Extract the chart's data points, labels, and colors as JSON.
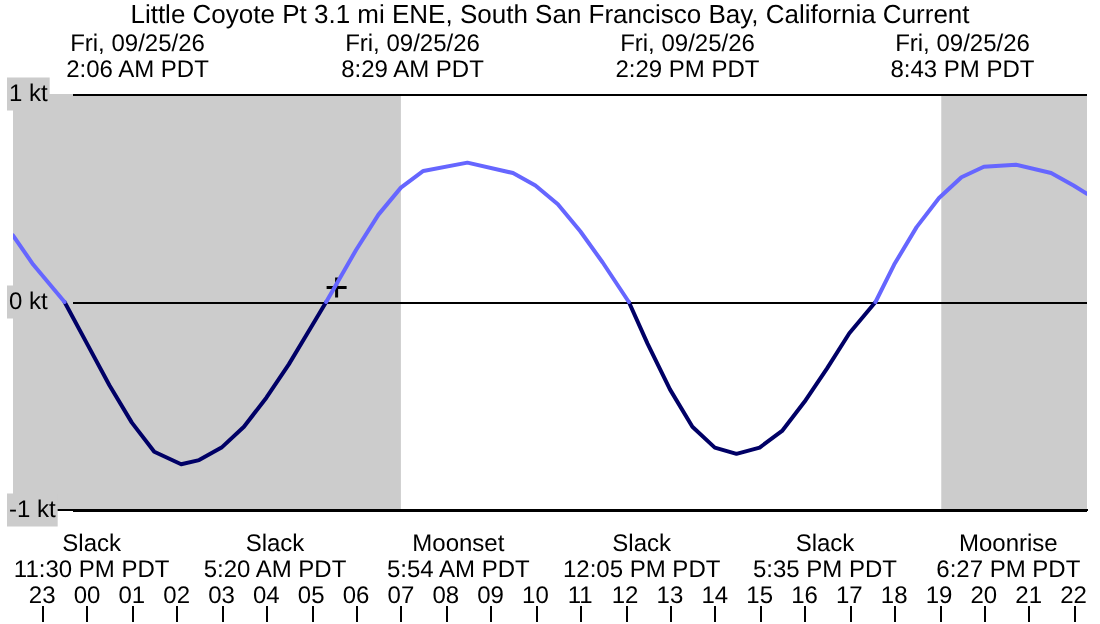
{
  "chart_data": {
    "type": "line",
    "title": "Little Coyote Pt 3.1 mi ENE, South San Francisco Bay, California Current",
    "xlim": [
      "--09-24T22:21",
      "--09-25T22:18"
    ],
    "xticks": [
      {
        "value": "--09-24T23:00",
        "label": "23"
      },
      {
        "value": "--09-25T00:00",
        "label": "00"
      },
      {
        "value": "--09-25T01:00",
        "label": "01"
      },
      {
        "value": "--09-25T02:00",
        "label": "02"
      },
      {
        "value": "--09-25T03:00",
        "label": "03"
      },
      {
        "value": "--09-25T04:00",
        "label": "04"
      },
      {
        "value": "--09-25T05:00",
        "label": "05"
      },
      {
        "value": "--09-25T06:00",
        "label": "06"
      },
      {
        "value": "--09-25T07:00",
        "label": "07"
      },
      {
        "value": "--09-25T08:00",
        "label": "08"
      },
      {
        "value": "--09-25T09:00",
        "label": "09"
      },
      {
        "value": "--09-25T10:00",
        "label": "10"
      },
      {
        "value": "--09-25T11:00",
        "label": "11"
      },
      {
        "value": "--09-25T12:00",
        "label": "12"
      },
      {
        "value": "--09-25T13:00",
        "label": "13"
      },
      {
        "value": "--09-25T14:00",
        "label": "14"
      },
      {
        "value": "--09-25T15:00",
        "label": "15"
      },
      {
        "value": "--09-25T16:00",
        "label": "16"
      },
      {
        "value": "--09-25T17:00",
        "label": "17"
      },
      {
        "value": "--09-25T18:00",
        "label": "18"
      },
      {
        "value": "--09-25T19:00",
        "label": "19"
      },
      {
        "value": "--09-25T20:00",
        "label": "20"
      },
      {
        "value": "--09-25T21:00",
        "label": "21"
      },
      {
        "value": "--09-25T22:00",
        "label": "22"
      }
    ],
    "ylim": [
      -1,
      1
    ],
    "yticks": [
      {
        "value": -1,
        "label": "-1 kt"
      },
      {
        "value": 0,
        "label": "0 kt"
      },
      {
        "value": 1,
        "label": "1 kt"
      }
    ],
    "grid": "y",
    "series": [
      {
        "color": "#6666ff",
        "x": [
          "--09-24T22:21",
          "--09-24T22:48",
          "--09-24T23:30",
          "--09-25T02:06",
          "--09-25T05:20",
          "--09-25T06:00",
          "--09-25T06:30",
          "--09-25T07:00",
          "--09-25T07:30",
          "--09-25T08:29",
          "--09-25T09:30",
          "--09-25T10:00",
          "--09-25T10:30",
          "--09-25T11:00",
          "--09-25T11:30",
          "--09-25T12:05",
          "--09-25T14:29",
          "--09-25T17:35",
          "--09-25T18:00",
          "--09-25T18:30",
          "--09-25T19:00",
          "--09-25T19:30",
          "--09-25T20:00",
          "--09-25T20:43",
          "--09-25T21:30",
          "--09-25T22:00",
          "--09-25T22:18"
        ],
        "values": [
          0.32,
          0.18,
          0,
          null,
          0,
          0.25,
          0.42,
          0.55,
          0.63,
          0.67,
          0.62,
          0.56,
          0.47,
          0.34,
          0.19,
          0,
          null,
          0,
          0.18,
          0.36,
          0.5,
          0.6,
          0.65,
          0.66,
          0.62,
          0.56,
          0.52
        ]
      },
      {
        "color": "#000066",
        "x": [
          "--09-24T23:30",
          "--09-25T00:00",
          "--09-25T00:30",
          "--09-25T01:00",
          "--09-25T01:30",
          "--09-25T02:06",
          "--09-25T02:30",
          "--09-25T03:00",
          "--09-25T03:30",
          "--09-25T04:00",
          "--09-25T04:30",
          "--09-25T05:00",
          "--09-25T05:20",
          "--09-25T08:29",
          "--09-25T12:05",
          "--09-25T12:30",
          "--09-25T13:00",
          "--09-25T13:30",
          "--09-25T14:00",
          "--09-25T14:29",
          "--09-25T15:00",
          "--09-25T15:30",
          "--09-25T16:00",
          "--09-25T16:30",
          "--09-25T17:00",
          "--09-25T17:35"
        ],
        "values": [
          0,
          -0.2,
          -0.4,
          -0.58,
          -0.72,
          -0.78,
          -0.76,
          -0.7,
          -0.6,
          -0.46,
          -0.3,
          -0.12,
          0,
          null,
          0,
          -0.2,
          -0.42,
          -0.6,
          -0.7,
          -0.73,
          -0.7,
          -0.62,
          -0.48,
          -0.32,
          -0.15,
          0
        ]
      },
      {
        "type": "scatter",
        "marker": "cross",
        "color": "#000000",
        "x": [
          "--09-25T05:34"
        ],
        "values": [
          0.07
        ]
      }
    ],
    "bands": [
      {
        "axis": "x",
        "from": "--09-24T22:21",
        "to": "--09-25T07:00",
        "color": "#cccccc"
      },
      {
        "axis": "x",
        "from": "--09-25T19:03",
        "to": "--09-25T22:18",
        "color": "#cccccc"
      }
    ],
    "annotations": [
      "Fri, 09/25/26\n2:06 AM PDT",
      "Fri, 09/25/26\n8:29 AM PDT",
      "Fri, 09/25/26\n2:29 PM PDT",
      "Fri, 09/25/26\n8:43 PM PDT",
      "Slack\n11:30 PM PDT",
      "Slack\n5:20 AM PDT",
      "Moonset\n5:54 AM PDT",
      "Slack\n12:05 PM PDT",
      "Slack\n5:35 PM PDT",
      "Moonrise\n6:27 PM PDT"
    ]
  }
}
